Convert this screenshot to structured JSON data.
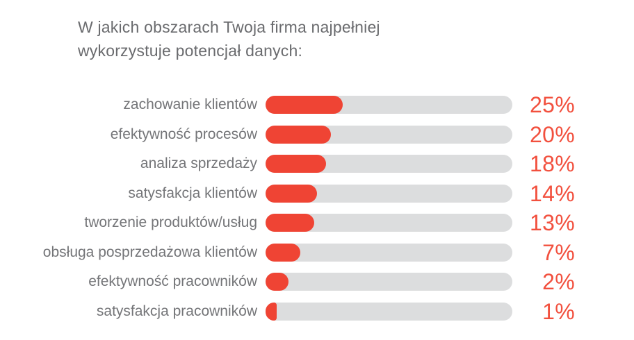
{
  "chart_data": {
    "type": "bar",
    "orientation": "horizontal",
    "title": "W jakich obszarach Twoja firma najpełniej wykorzystuje potencjał danych:",
    "unit": "%",
    "categories": [
      "zachowanie klientów",
      "efektywność procesów",
      "analiza sprzedaży",
      "satysfakcja klientów",
      "tworzenie produktów/usług",
      "obsługa posprzedażowa klientów",
      "efektywność pracowników",
      "satysfakcja pracowników"
    ],
    "values": [
      25,
      20,
      18,
      14,
      13,
      7,
      2,
      1
    ],
    "value_labels": [
      "25%",
      "20%",
      "18%",
      "14%",
      "13%",
      "7%",
      "2%",
      "1%"
    ],
    "value_max": 25,
    "grid": false,
    "legend": false,
    "axis_labels": "none",
    "colors": {
      "bar": "#ef4434",
      "track": "#dcddde",
      "value_text": "#f2503e",
      "category_text": "#747578",
      "title_text": "#6a6b6e",
      "background": "#ffffff"
    }
  }
}
